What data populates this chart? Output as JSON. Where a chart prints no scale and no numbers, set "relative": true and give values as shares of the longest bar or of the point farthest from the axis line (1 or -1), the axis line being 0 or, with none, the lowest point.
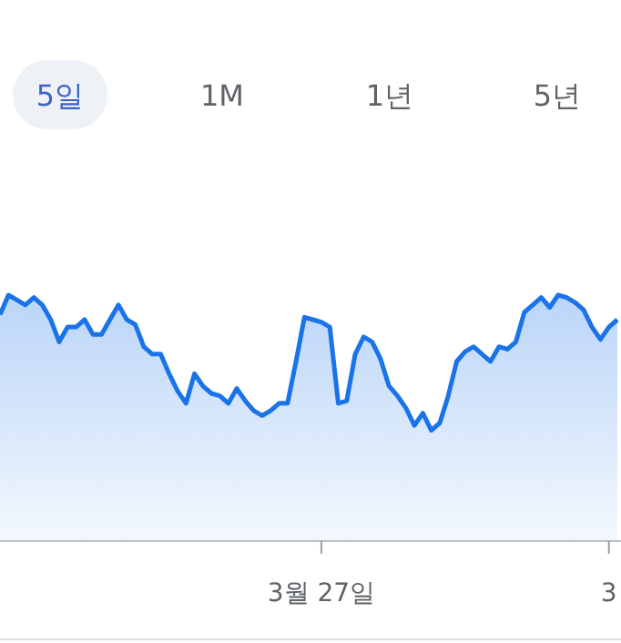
{
  "chart_data": {
    "type": "area",
    "relative": true,
    "annotations": [
      "5일",
      "1M",
      "1년",
      "5년"
    ],
    "categories": [
      null,
      null,
      null,
      null,
      null,
      null,
      null,
      null,
      null,
      null,
      null,
      null,
      null,
      null,
      null,
      null,
      null,
      null,
      null,
      null,
      null,
      null,
      null,
      null,
      null,
      null,
      null,
      null,
      null,
      null,
      null,
      null,
      null,
      null,
      null,
      null,
      null,
      null,
      "3월 27일",
      null,
      null,
      null,
      null,
      null,
      null,
      null,
      null,
      null,
      null,
      null,
      null,
      null,
      null,
      null,
      null,
      null,
      null,
      null,
      null,
      null,
      null,
      null,
      null,
      null,
      null,
      null,
      null,
      null,
      null,
      null,
      null,
      null,
      "3",
      null
    ],
    "series": [
      {
        "color": "#1a73e8",
        "values": [
          0.92,
          1,
          0.98,
          0.96,
          0.99,
          0.96,
          0.9,
          0.81,
          0.87,
          0.87,
          0.9,
          0.84,
          0.84,
          0.9,
          0.96,
          0.9,
          0.88,
          0.79,
          0.76,
          0.76,
          0.68,
          0.61,
          0.56,
          0.68,
          0.63,
          0.6,
          0.59,
          0.56,
          0.62,
          0.57,
          0.53,
          0.51,
          0.53,
          0.56,
          0.56,
          0.73,
          0.91,
          0.9,
          0.89,
          0.87,
          0.56,
          0.57,
          0.76,
          0.83,
          0.81,
          0.74,
          0.63,
          0.59,
          0.54,
          0.47,
          0.52,
          0.45,
          0.48,
          0.59,
          0.73,
          0.77,
          0.79,
          0.76,
          0.73,
          0.79,
          0.78,
          0.81,
          0.93,
          0.96,
          0.99,
          0.95,
          1,
          0.99,
          0.97,
          0.94,
          0.87,
          0.82,
          0.87,
          0.9
        ]
      }
    ]
  }
}
